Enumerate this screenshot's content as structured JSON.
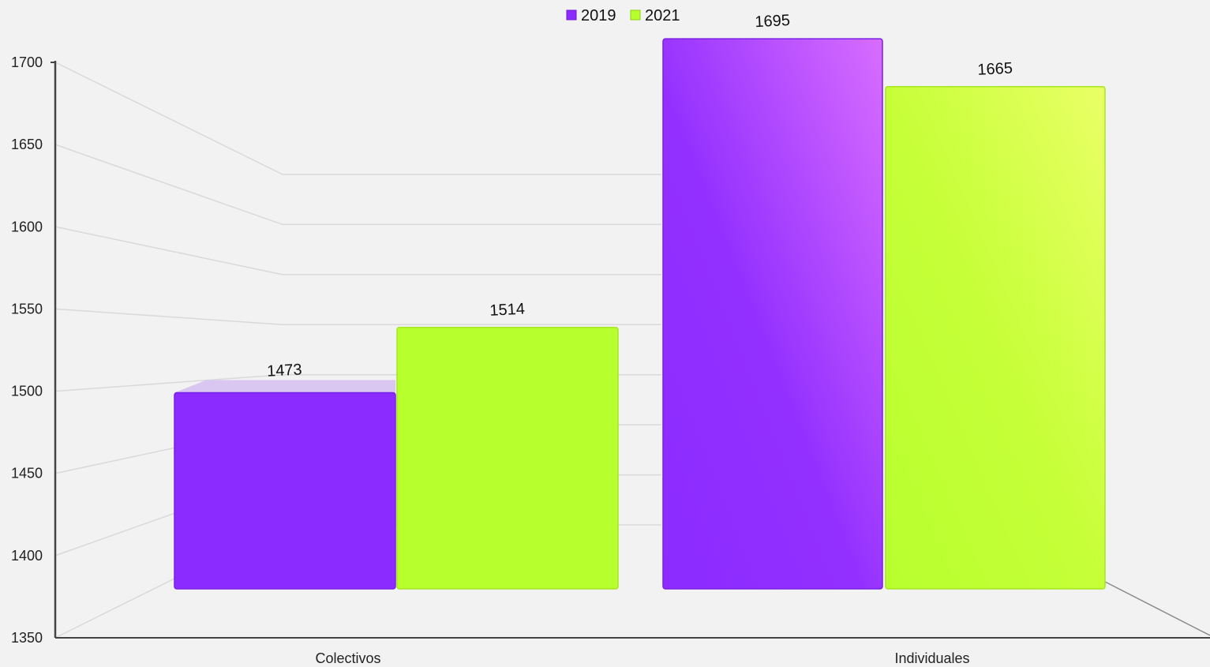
{
  "chart_data": {
    "type": "bar",
    "style": "3d-perspective",
    "categories": [
      "Colectivos",
      "Individuales"
    ],
    "series": [
      {
        "name": "2019",
        "values": [
          1473,
          1695
        ],
        "color": "#8b2bff"
      },
      {
        "name": "2021",
        "values": [
          1514,
          1665
        ],
        "color": "#b8ff2e"
      }
    ],
    "ylim": [
      1350,
      1700
    ],
    "yticks": [
      "1350",
      "1400",
      "1450",
      "1500",
      "1550",
      "1600",
      "1650",
      "1700"
    ],
    "grid": true,
    "legend_position": "top-center",
    "title": "",
    "xlabel": "",
    "ylabel": ""
  }
}
